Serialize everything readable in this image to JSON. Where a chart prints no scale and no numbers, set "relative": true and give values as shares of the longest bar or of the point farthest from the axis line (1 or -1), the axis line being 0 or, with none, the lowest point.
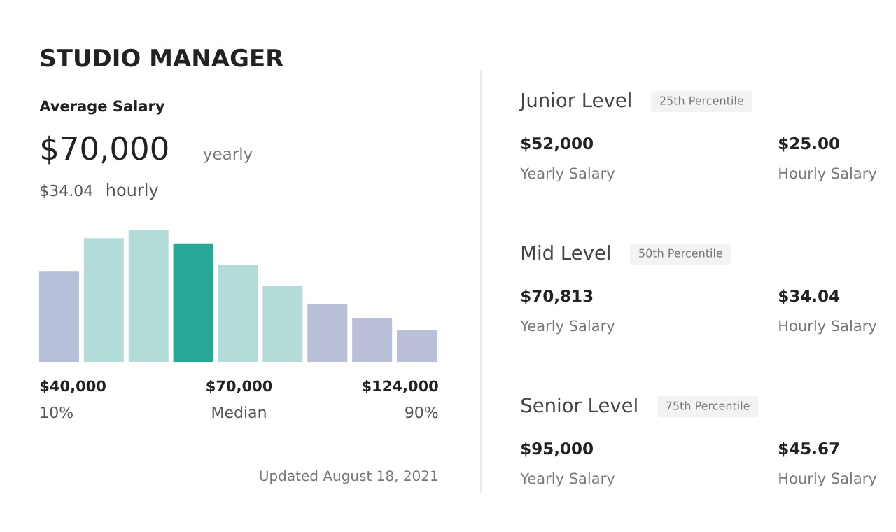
{
  "chart_data": [
    {
      "type": "bar",
      "title": "STUDIO MANAGER",
      "subtitle": "Average Salary",
      "relative": true,
      "categories": [
        null,
        null,
        null,
        null,
        null,
        null,
        null,
        null,
        null
      ],
      "values": [
        0.69,
        0.94,
        1,
        0.9,
        0.74,
        0.58,
        0.44,
        0.33,
        0.24
      ],
      "colors": [
        "#b5bfd8",
        "#b3dcd9",
        "#b3dcd9",
        "#27a796",
        "#b3dcd9",
        "#b3dcd9",
        "#b9bfd7",
        "#b9bfd7",
        "#b9bfd7"
      ],
      "annotations": [
        "$70,000",
        "yearly",
        "$34.04",
        "hourly",
        "$40,000",
        "$70,000",
        "$124,000",
        "10%",
        "Median",
        "90%",
        "Updated August 18, 2021"
      ]
    },
    {
      "type": "other",
      "annotations": [
        "Junior Level",
        "25th Percentile",
        "$52,000",
        "Yearly Salary",
        "$25.00",
        "Hourly Salary",
        "Mid Level",
        "50th Percentile",
        "$70,813",
        "Yearly Salary",
        "$34.04",
        "Hourly Salary",
        "Senior Level",
        "75th Percentile",
        "$95,000",
        "Yearly Salary",
        "$45.67",
        "Hourly Salary"
      ]
    }
  ]
}
